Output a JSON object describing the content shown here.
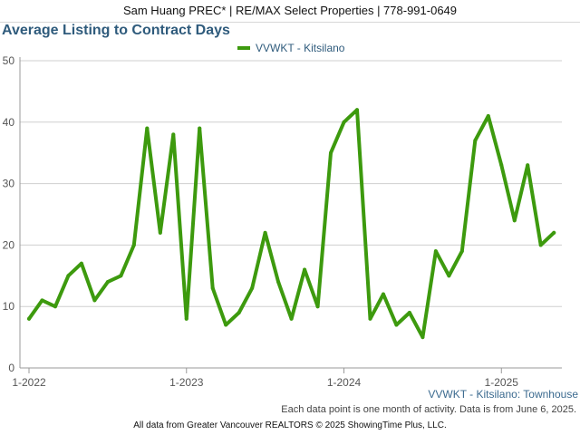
{
  "header": {
    "banner": "Sam Huang PREC* | RE/MAX Select Properties | 778-991-0649"
  },
  "chart_data": {
    "type": "line",
    "title": "Average Listing to Contract Days",
    "subtitle": "VVWKT - Kitsilano: Townhouse",
    "xlabel": "",
    "ylabel": "",
    "ylim": [
      0,
      50
    ],
    "yticks": [
      0,
      10,
      20,
      30,
      40,
      50
    ],
    "xticks": [
      "1-2022",
      "1-2023",
      "1-2024",
      "1-2025"
    ],
    "grid": true,
    "legend_position": "top-center",
    "x": [
      "1-2022",
      "2-2022",
      "3-2022",
      "4-2022",
      "5-2022",
      "6-2022",
      "7-2022",
      "8-2022",
      "9-2022",
      "10-2022",
      "11-2022",
      "12-2022",
      "1-2023",
      "2-2023",
      "3-2023",
      "4-2023",
      "5-2023",
      "6-2023",
      "7-2023",
      "8-2023",
      "9-2023",
      "10-2023",
      "11-2023",
      "12-2023",
      "1-2024",
      "2-2024",
      "3-2024",
      "4-2024",
      "5-2024",
      "6-2024",
      "7-2024",
      "8-2024",
      "9-2024",
      "10-2024",
      "11-2024",
      "12-2024",
      "1-2025",
      "2-2025",
      "3-2025",
      "4-2025",
      "5-2025"
    ],
    "series": [
      {
        "name": "VVWKT - Kitsilano",
        "color": "#3d9a0e",
        "values": [
          8,
          11,
          10,
          15,
          17,
          11,
          14,
          15,
          20,
          39,
          22,
          38,
          8,
          39,
          13,
          7,
          9,
          13,
          22,
          14,
          8,
          16,
          10,
          35,
          40,
          42,
          8,
          12,
          7,
          9,
          5,
          19,
          15,
          19,
          37,
          41,
          33,
          24,
          33,
          20,
          22
        ]
      }
    ]
  },
  "notes": {
    "data_note": "Each data point is one month of activity. Data is from June 6, 2025.",
    "footer": "All data from Greater Vancouver REALTORS © 2025 ShowingTime Plus, LLC."
  }
}
